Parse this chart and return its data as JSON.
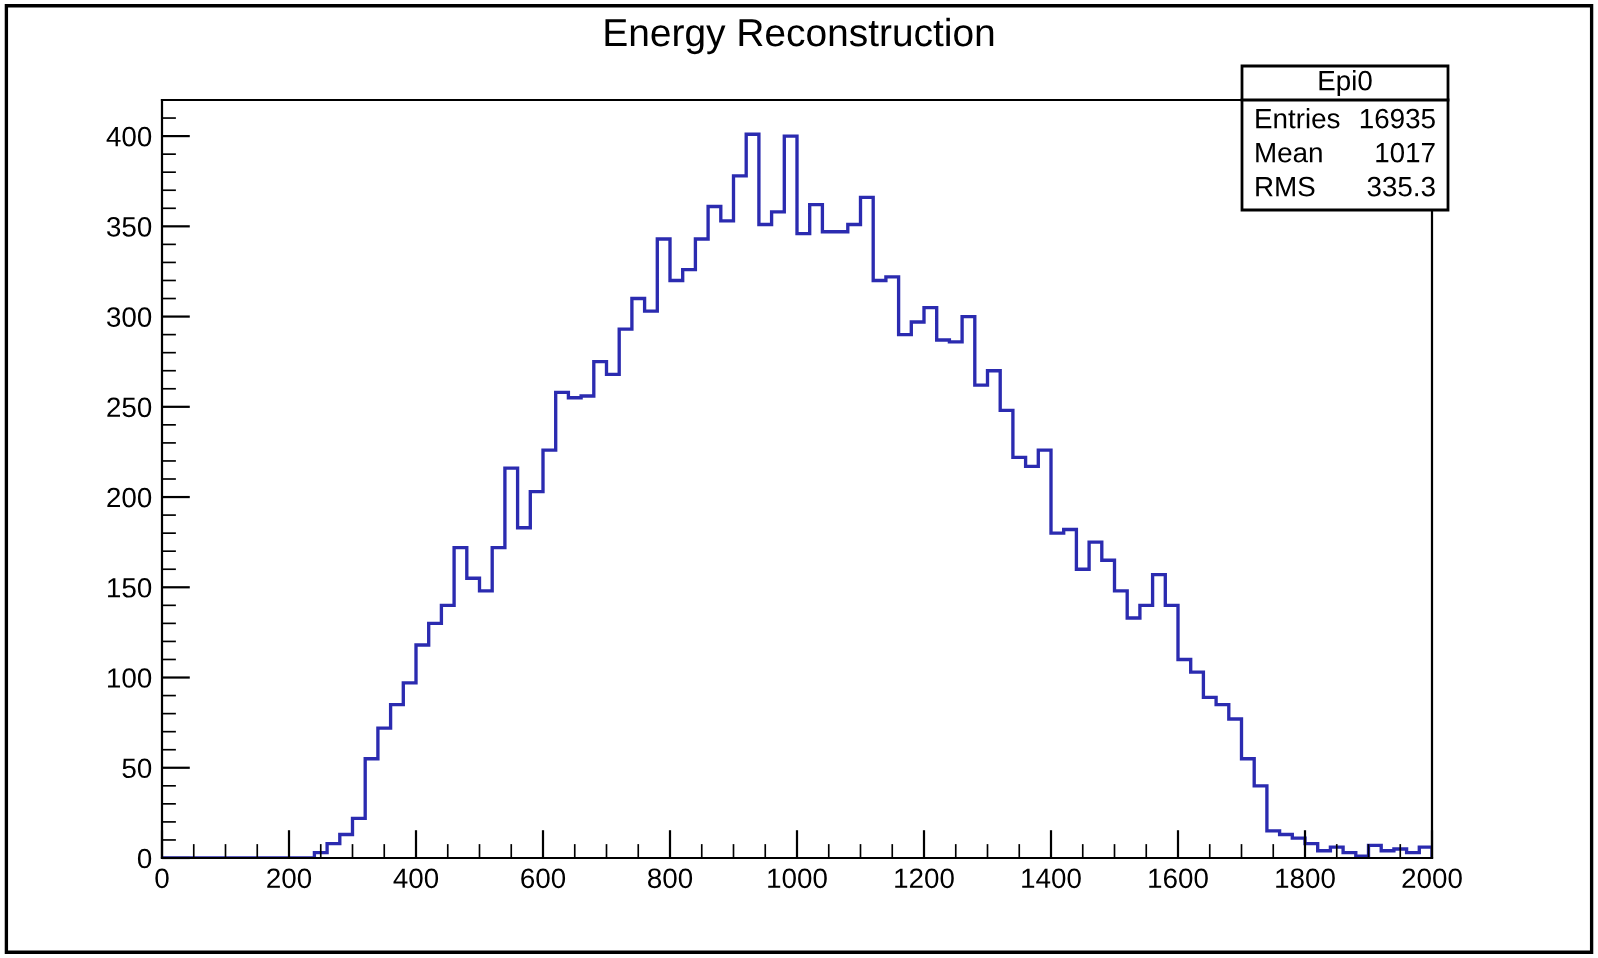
{
  "chart_data": {
    "type": "histogram",
    "title": "Energy Reconstruction",
    "bins": [
      0,
      20,
      40,
      60,
      80,
      100,
      120,
      140,
      160,
      180,
      200,
      220,
      240,
      260,
      280,
      300,
      320,
      340,
      360,
      380,
      400,
      420,
      440,
      460,
      480,
      500,
      520,
      540,
      560,
      580,
      600,
      620,
      640,
      660,
      680,
      700,
      720,
      740,
      760,
      780,
      800,
      820,
      840,
      860,
      880,
      900,
      920,
      940,
      960,
      980,
      1000,
      1020,
      1040,
      1060,
      1080,
      1100,
      1120,
      1140,
      1160,
      1180,
      1200,
      1220,
      1240,
      1260,
      1280,
      1300,
      1320,
      1340,
      1360,
      1380,
      1400,
      1420,
      1440,
      1460,
      1480,
      1500,
      1520,
      1540,
      1560,
      1580,
      1600,
      1620,
      1640,
      1660,
      1680,
      1700,
      1720,
      1740,
      1760,
      1780,
      1800,
      1820,
      1840,
      1860,
      1880,
      1900,
      1920,
      1940,
      1960,
      1980,
      2000
    ],
    "values": [
      0,
      0,
      0,
      0,
      0,
      0,
      0,
      0,
      0,
      0,
      0,
      0,
      3,
      8,
      13,
      22,
      55,
      72,
      85,
      97,
      118,
      130,
      140,
      172,
      155,
      148,
      172,
      216,
      183,
      203,
      226,
      258,
      255,
      256,
      275,
      268,
      293,
      310,
      303,
      343,
      320,
      326,
      343,
      361,
      353,
      378,
      401,
      351,
      358,
      400,
      346,
      362,
      347,
      347,
      351,
      366,
      320,
      322,
      290,
      297,
      305,
      287,
      286,
      300,
      262,
      270,
      248,
      222,
      217,
      226,
      180,
      182,
      160,
      175,
      165,
      148,
      133,
      140,
      157,
      140,
      110,
      103,
      89,
      85,
      77,
      55,
      40,
      15,
      13,
      11,
      8,
      4,
      6,
      3,
      1,
      7,
      4,
      5,
      3,
      6
    ],
    "color": "#2b2bb0",
    "xlim": [
      0,
      2000
    ],
    "xticks": [
      0,
      200,
      400,
      600,
      800,
      1000,
      1200,
      1400,
      1600,
      1800,
      2000
    ],
    "ylim": [
      0,
      420
    ],
    "yticks": [
      0,
      50,
      100,
      150,
      200,
      250,
      300,
      350,
      400
    ],
    "annotations": [
      "Epi0",
      "Entries",
      "16935",
      "Mean",
      "1017",
      "RMS",
      "335.3"
    ]
  }
}
